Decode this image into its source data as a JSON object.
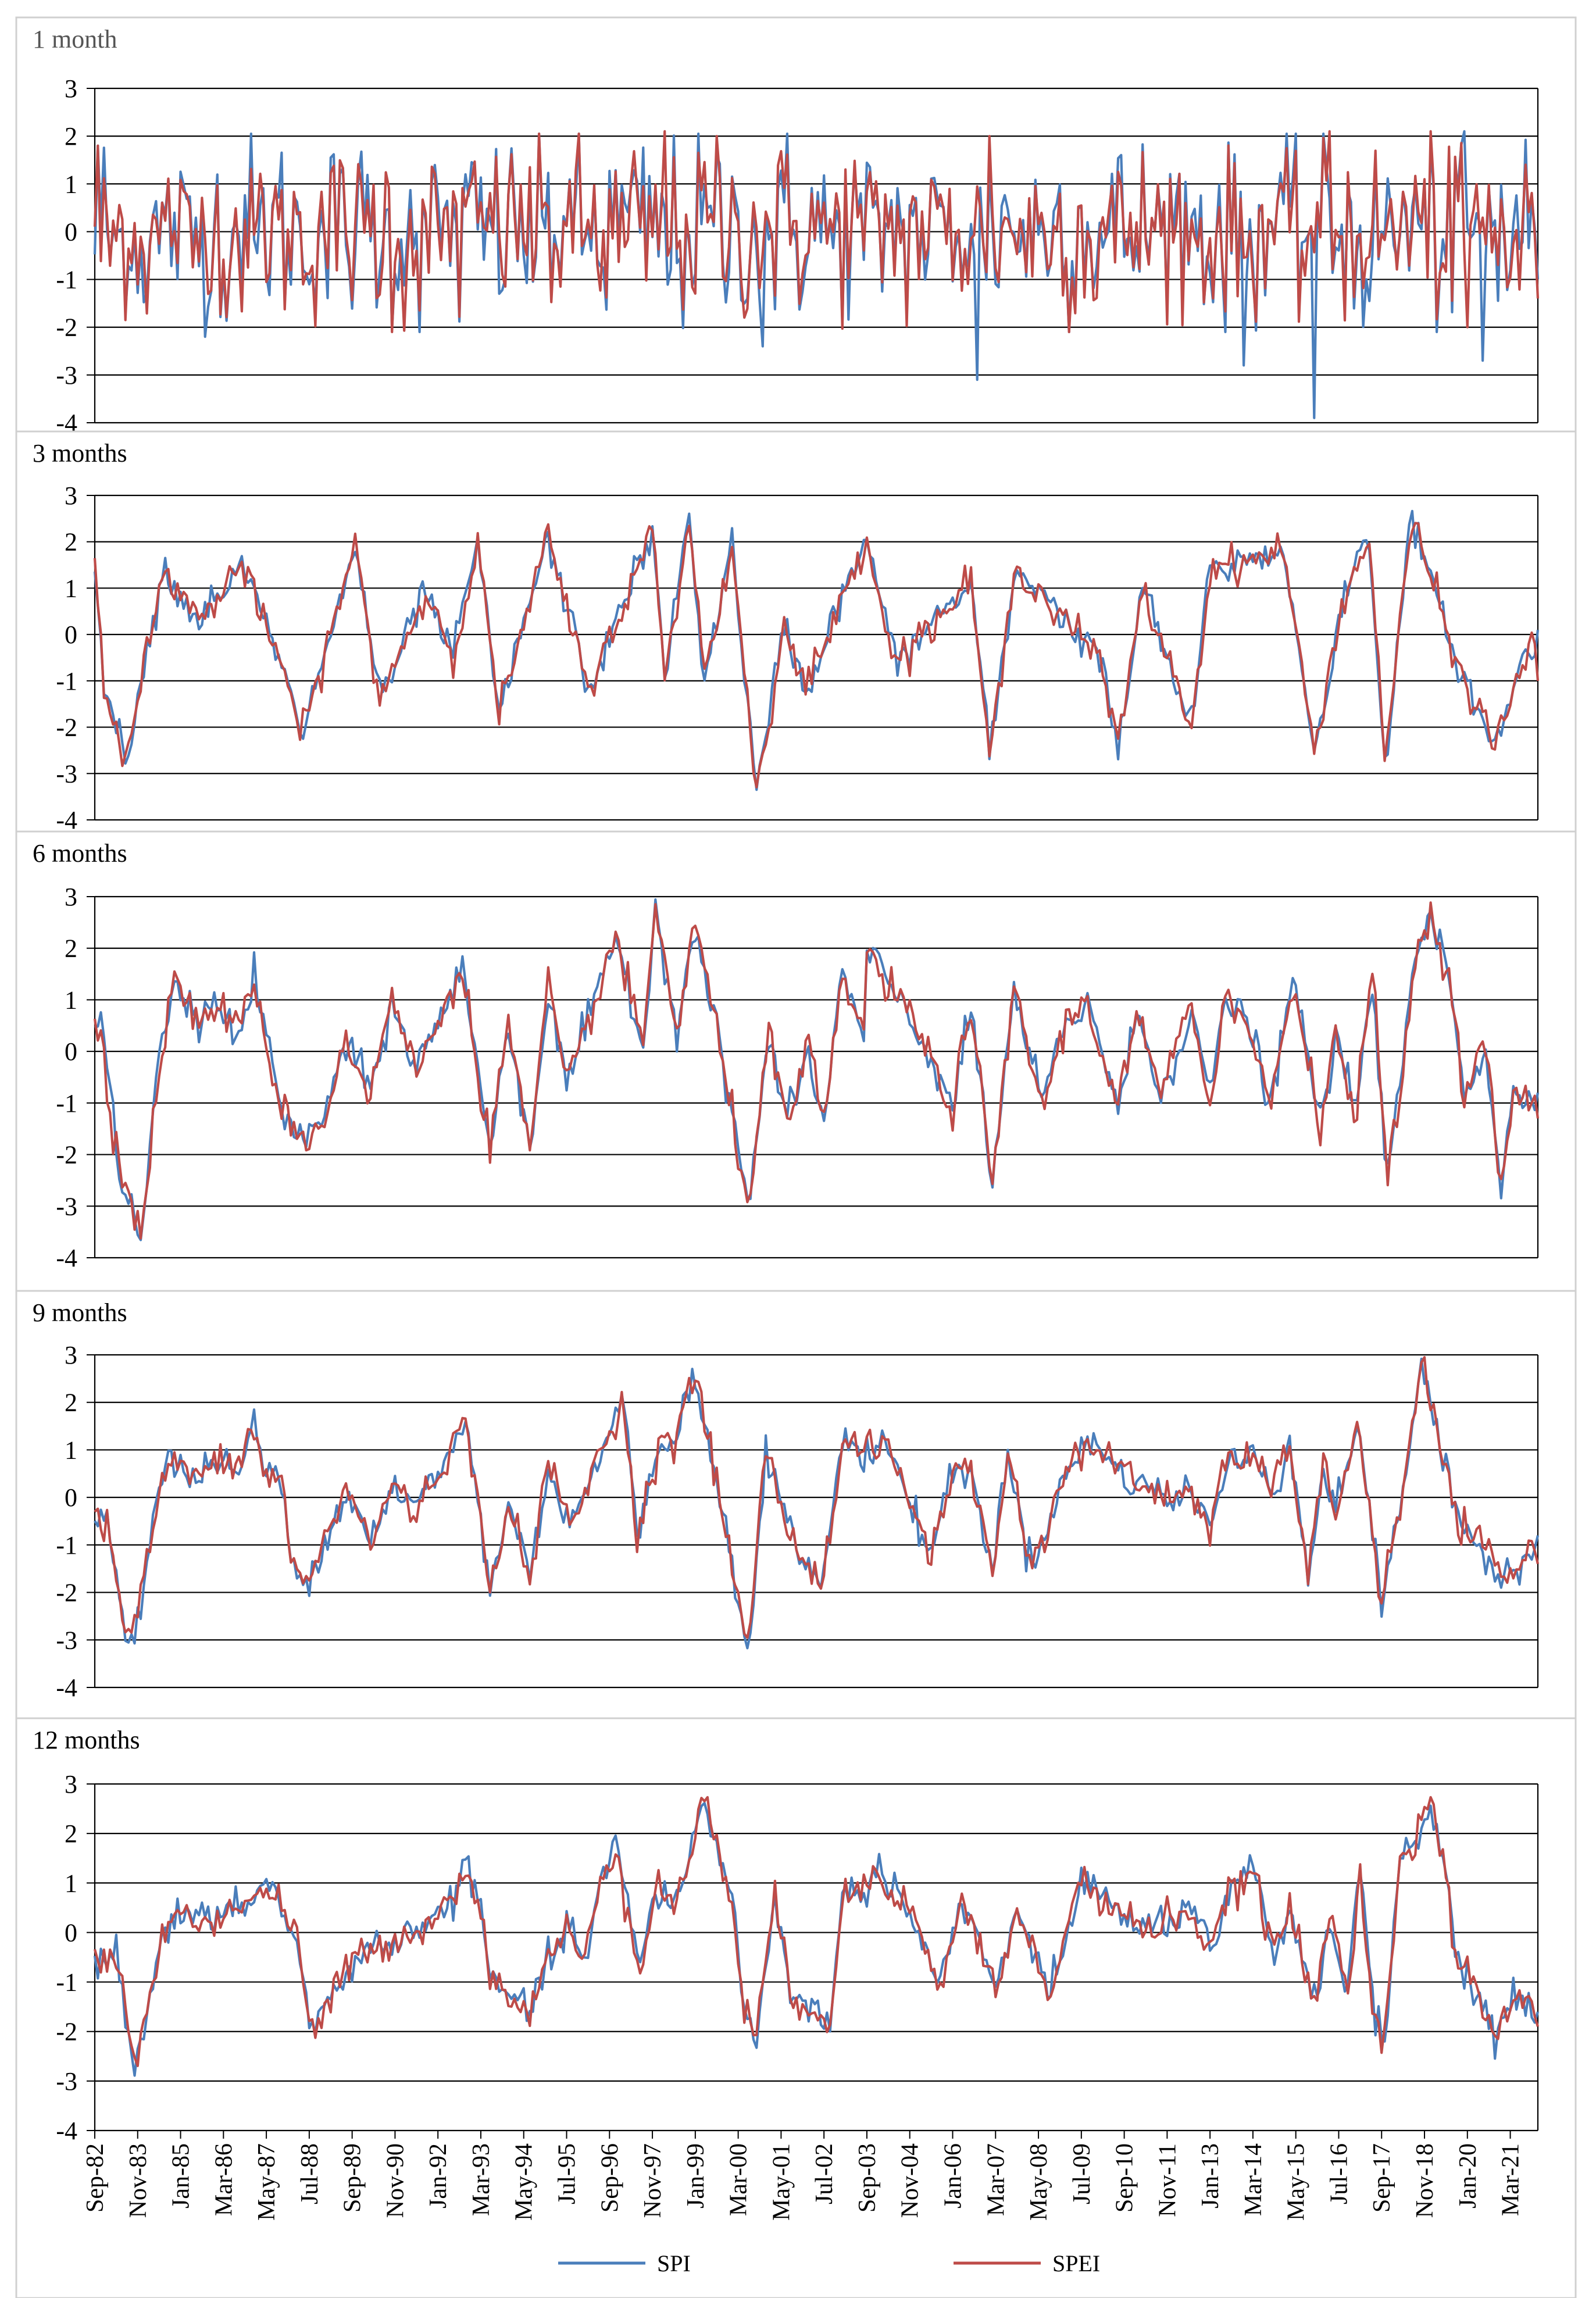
{
  "figure": {
    "legend": [
      {
        "name": "SPI",
        "color": "#4A7EBB"
      },
      {
        "name": "SPEI",
        "color": "#BE4B48"
      }
    ],
    "x_tick_labels": [
      "Sep-82",
      "Nov-83",
      "Jan-85",
      "Mar-86",
      "May-87",
      "Jul-88",
      "Sep-89",
      "Nov-90",
      "Jan-92",
      "Mar-93",
      "May-94",
      "Jul-95",
      "Sep-96",
      "Nov-97",
      "Jan-99",
      "Mar-00",
      "May-01",
      "Jul-02",
      "Sep-03",
      "Nov-04",
      "Jan-06",
      "Mar-07",
      "May-08",
      "Jul-09",
      "Sep-10",
      "Nov-11",
      "Jan-13",
      "Mar-14",
      "May-15",
      "Jul-16",
      "Sep-17",
      "Nov-18",
      "Jan-20",
      "Mar-21"
    ]
  },
  "chart_data": [
    {
      "type": "line",
      "title": "1 month",
      "ylim": [
        -4,
        3
      ],
      "y_ticks": [
        3,
        2,
        1,
        0,
        -1,
        -2,
        -3,
        -4
      ],
      "grid": true,
      "x_range": [
        "Sep-82",
        "Dec-21"
      ],
      "series": [
        {
          "name": "SPI",
          "color": "#4A7EBB",
          "volatility": 1.0,
          "spikes": [
            [
              "Oct-82",
              1.8
            ],
            [
              "Sep-85",
              -2.2
            ],
            [
              "Nov-00",
              -2.4
            ],
            [
              "Sep-06",
              -3.1
            ],
            [
              "Dec-13",
              -2.8
            ],
            [
              "Nov-15",
              -3.9
            ],
            [
              "Dec-19",
              2.1
            ],
            [
              "Jun-20",
              -2.7
            ],
            [
              "Oct-21",
              0.7
            ]
          ]
        },
        {
          "name": "SPEI",
          "color": "#BE4B48",
          "volatility": 0.95,
          "spikes": [
            [
              "Oct-82",
              1.8
            ],
            [
              "Mar-98",
              2.1
            ],
            [
              "Aug-99",
              2.0
            ],
            [
              "Jan-07",
              2.0
            ],
            [
              "Apr-16",
              2.1
            ],
            [
              "Jan-19",
              2.1
            ],
            [
              "Jan-20",
              -2.0
            ],
            [
              "Dec-21",
              -1.4
            ]
          ]
        }
      ]
    },
    {
      "type": "line",
      "title": "3 months",
      "ylim": [
        -4,
        3
      ],
      "y_ticks": [
        3,
        2,
        1,
        0,
        -1,
        -2,
        -3,
        -4
      ],
      "grid": true,
      "x_range": [
        "Sep-82",
        "Dec-21"
      ],
      "anchors": [
        [
          "Sep-82",
          1.8
        ],
        [
          "Dec-82",
          -1.2
        ],
        [
          "Apr-83",
          -2.0
        ],
        [
          "Jul-83",
          -2.7
        ],
        [
          "Nov-83",
          -1.2
        ],
        [
          "Apr-84",
          0.2
        ],
        [
          "Aug-84",
          1.4
        ],
        [
          "Jul-85",
          0.3
        ],
        [
          "Sep-86",
          1.5
        ],
        [
          "Jan-88",
          -1.2
        ],
        [
          "Apr-88",
          -2.3
        ],
        [
          "Oct-89",
          1.9
        ],
        [
          "Jun-90",
          -1.4
        ],
        [
          "Sep-91",
          0.9
        ],
        [
          "Jun-92",
          -0.4
        ],
        [
          "Feb-93",
          1.9
        ],
        [
          "Sep-93",
          -1.7
        ],
        [
          "Jan-95",
          2.1
        ],
        [
          "Feb-96",
          -1.2
        ],
        [
          "Nov-97",
          2.2
        ],
        [
          "Mar-98",
          -0.9
        ],
        [
          "Nov-98",
          2.5
        ],
        [
          "Apr-99",
          -0.9
        ],
        [
          "Jan-00",
          1.9
        ],
        [
          "Sep-00",
          -3.4
        ],
        [
          "Jun-01",
          0.2
        ],
        [
          "Jan-02",
          -1.2
        ],
        [
          "Sep-03",
          2.1
        ],
        [
          "Jun-04",
          -0.6
        ],
        [
          "Jul-06",
          1.1
        ],
        [
          "Jan-07",
          -2.6
        ],
        [
          "Oct-07",
          1.5
        ],
        [
          "Jan-10",
          -0.5
        ],
        [
          "Jul-10",
          -2.5
        ],
        [
          "Mar-11",
          1.0
        ],
        [
          "Jul-12",
          -2.0
        ],
        [
          "Jan-13",
          1.4
        ],
        [
          "Jan-15",
          1.8
        ],
        [
          "Nov-15",
          -2.5
        ],
        [
          "Sep-16",
          0.9
        ],
        [
          "May-17",
          2.1
        ],
        [
          "Oct-17",
          -2.7
        ],
        [
          "Jul-18",
          2.5
        ],
        [
          "Oct-19",
          -0.7
        ],
        [
          "Oct-20",
          -2.4
        ],
        [
          "Jun-21",
          -0.8
        ],
        [
          "Dec-21",
          0.1
        ]
      ],
      "series": [
        {
          "name": "SPI",
          "color": "#4A7EBB",
          "end_value": 0.1
        },
        {
          "name": "SPEI",
          "color": "#BE4B48",
          "end_value": -1.0
        }
      ]
    },
    {
      "type": "line",
      "title": "6 months",
      "ylim": [
        -4,
        3
      ],
      "y_ticks": [
        3,
        2,
        1,
        0,
        -1,
        -2,
        -3,
        -4
      ],
      "grid": true,
      "x_range": [
        "Sep-82",
        "Dec-21"
      ],
      "anchors": [
        [
          "Nov-82",
          0.5
        ],
        [
          "Mar-83",
          -1.4
        ],
        [
          "Jun-83",
          -2.5
        ],
        [
          "Dec-83",
          -3.6
        ],
        [
          "Jun-84",
          -0.3
        ],
        [
          "Nov-84",
          1.4
        ],
        [
          "Jul-85",
          0.5
        ],
        [
          "Jan-86",
          1.0
        ],
        [
          "Aug-86",
          0.3
        ],
        [
          "Jan-87",
          1.4
        ],
        [
          "Oct-87",
          -1.2
        ],
        [
          "Jun-88",
          -1.7
        ],
        [
          "Jan-89",
          -1.2
        ],
        [
          "Jun-89",
          0.2
        ],
        [
          "Mar-90",
          -0.8
        ],
        [
          "Oct-90",
          1.0
        ],
        [
          "Jun-91",
          -0.4
        ],
        [
          "Jan-92",
          0.6
        ],
        [
          "Sep-92",
          1.6
        ],
        [
          "Jun-93",
          -1.8
        ],
        [
          "Dec-93",
          0.5
        ],
        [
          "Jul-94",
          -1.9
        ],
        [
          "Jan-95",
          1.2
        ],
        [
          "Jul-95",
          -0.7
        ],
        [
          "Nov-96",
          2.2
        ],
        [
          "Aug-97",
          0.1
        ],
        [
          "Dec-97",
          2.8
        ],
        [
          "Jul-98",
          0.4
        ],
        [
          "Jan-99",
          2.5
        ],
        [
          "Jan-00",
          -1.2
        ],
        [
          "Jun-00",
          -3.0
        ],
        [
          "Jan-01",
          0.3
        ],
        [
          "Jul-01",
          -1.5
        ],
        [
          "Feb-02",
          0.1
        ],
        [
          "Jul-02",
          -1.5
        ],
        [
          "Jan-03",
          1.5
        ],
        [
          "Aug-03",
          0.3
        ],
        [
          "Sep-03",
          1.9
        ],
        [
          "Dec-04",
          0.6
        ],
        [
          "Jan-06",
          -1.1
        ],
        [
          "Jul-06",
          0.9
        ],
        [
          "Feb-07",
          -2.7
        ],
        [
          "Sep-07",
          1.3
        ],
        [
          "Jun-08",
          -1.1
        ],
        [
          "Jan-09",
          0.4
        ],
        [
          "Sep-09",
          1.0
        ],
        [
          "Jul-10",
          -1.1
        ],
        [
          "Jan-11",
          0.7
        ],
        [
          "Sep-11",
          -0.8
        ],
        [
          "Jul-12",
          0.8
        ],
        [
          "Jan-13",
          -1.0
        ],
        [
          "Jun-13",
          1.2
        ],
        [
          "Mar-14",
          0.2
        ],
        [
          "Sep-14",
          -1.0
        ],
        [
          "Apr-15",
          1.4
        ],
        [
          "Jan-16",
          -1.4
        ],
        [
          "Jun-16",
          0.4
        ],
        [
          "Dec-16",
          -1.3
        ],
        [
          "Jun-17",
          1.5
        ],
        [
          "Nov-17",
          -2.5
        ],
        [
          "Apr-18",
          -0.2
        ],
        [
          "Sep-18",
          2.1
        ],
        [
          "Jan-19",
          2.6
        ],
        [
          "Jun-19",
          1.8
        ],
        [
          "Dec-19",
          -0.8
        ],
        [
          "Jul-20",
          0.1
        ],
        [
          "Dec-20",
          -2.6
        ],
        [
          "Apr-21",
          -1.0
        ],
        [
          "Dec-21",
          -0.8
        ]
      ],
      "series": [
        {
          "name": "SPI",
          "color": "#4A7EBB",
          "end_value": -0.8
        },
        {
          "name": "SPEI",
          "color": "#BE4B48",
          "end_value": -1.3
        }
      ]
    },
    {
      "type": "line",
      "title": "9 months",
      "ylim": [
        -4,
        3
      ],
      "y_ticks": [
        3,
        2,
        1,
        0,
        -1,
        -2,
        -3,
        -4
      ],
      "grid": true,
      "x_range": [
        "Sep-82",
        "Dec-21"
      ],
      "anchors": [
        [
          "Jan-83",
          -0.5
        ],
        [
          "Apr-83",
          -1.5
        ],
        [
          "Jul-83",
          -3.1
        ],
        [
          "Dec-83",
          -2.2
        ],
        [
          "Apr-84",
          -0.5
        ],
        [
          "Sep-84",
          0.8
        ],
        [
          "Jul-85",
          0.4
        ],
        [
          "Jan-86",
          0.8
        ],
        [
          "Jul-86",
          0.5
        ],
        [
          "Jan-87",
          1.5
        ],
        [
          "Apr-87",
          0.6
        ],
        [
          "Oct-87",
          0.3
        ],
        [
          "Jan-88",
          -1.3
        ],
        [
          "Jun-88",
          -1.8
        ],
        [
          "Jan-89",
          -0.8
        ],
        [
          "Jul-89",
          0.2
        ],
        [
          "Mar-90",
          -0.9
        ],
        [
          "Nov-90",
          0.3
        ],
        [
          "May-91",
          -0.3
        ],
        [
          "Jan-92",
          0.5
        ],
        [
          "Oct-92",
          1.6
        ],
        [
          "Jun-93",
          -1.9
        ],
        [
          "Dec-93",
          -0.1
        ],
        [
          "Jul-94",
          -1.7
        ],
        [
          "Jan-95",
          0.7
        ],
        [
          "Aug-95",
          -0.6
        ],
        [
          "Oct-96",
          1.5
        ],
        [
          "Jan-97",
          2.2
        ],
        [
          "Jun-97",
          -0.8
        ],
        [
          "Feb-98",
          1.3
        ],
        [
          "Jun-98",
          1.1
        ],
        [
          "Dec-98",
          2.6
        ],
        [
          "Jun-99",
          1.0
        ],
        [
          "Dec-99",
          -1.0
        ],
        [
          "Jun-00",
          -3.2
        ],
        [
          "Dec-00",
          1.0
        ],
        [
          "Jun-01",
          -0.4
        ],
        [
          "Dec-01",
          -1.3
        ],
        [
          "Jun-02",
          -1.8
        ],
        [
          "Feb-03",
          1.3
        ],
        [
          "Oct-03",
          0.9
        ],
        [
          "Mar-04",
          1.2
        ],
        [
          "Jan-05",
          -0.4
        ],
        [
          "Jun-05",
          -1.2
        ],
        [
          "Jan-06",
          0.6
        ],
        [
          "Jul-06",
          0.5
        ],
        [
          "Feb-07",
          -1.5
        ],
        [
          "Jul-07",
          0.9
        ],
        [
          "Mar-08",
          -1.5
        ],
        [
          "Jan-09",
          0.4
        ],
        [
          "Sep-09",
          1.2
        ],
        [
          "Sep-10",
          0.5
        ],
        [
          "Jan-12",
          -0.1
        ],
        [
          "Jun-12",
          0.3
        ],
        [
          "Jan-13",
          -0.7
        ],
        [
          "Jul-13",
          0.9
        ],
        [
          "Nov-13",
          0.6
        ],
        [
          "Mar-14",
          0.9
        ],
        [
          "Oct-14",
          0.2
        ],
        [
          "Mar-15",
          1.2
        ],
        [
          "Sep-15",
          -1.7
        ],
        [
          "Feb-16",
          0.6
        ],
        [
          "Jun-16",
          -0.3
        ],
        [
          "Jan-17",
          1.6
        ],
        [
          "Sep-17",
          -2.2
        ],
        [
          "May-18",
          0.5
        ],
        [
          "Oct-18",
          2.9
        ],
        [
          "May-19",
          0.7
        ],
        [
          "Dec-19",
          -0.8
        ],
        [
          "Jun-20",
          -1.0
        ],
        [
          "Nov-20",
          -1.6
        ],
        [
          "Apr-21",
          -1.6
        ],
        [
          "Dec-21",
          -0.8
        ]
      ],
      "series": [
        {
          "name": "SPI",
          "color": "#4A7EBB",
          "end_value": -0.8
        },
        {
          "name": "SPEI",
          "color": "#BE4B48",
          "end_value": -1.4
        }
      ]
    },
    {
      "type": "line",
      "title": "12 months",
      "ylim": [
        -4,
        3
      ],
      "y_ticks": [
        3,
        2,
        1,
        0,
        -1,
        -2,
        -3,
        -4
      ],
      "grid": true,
      "x_range": [
        "Sep-82",
        "Dec-21"
      ],
      "anchors": [
        [
          "Apr-83",
          -0.5
        ],
        [
          "Jul-83",
          -1.5
        ],
        [
          "Oct-83",
          -2.8
        ],
        [
          "Jan-84",
          -1.8
        ],
        [
          "Jun-84",
          -0.3
        ],
        [
          "Dec-84",
          0.4
        ],
        [
          "Jul-85",
          0.3
        ],
        [
          "Jan-86",
          0.2
        ],
        [
          "Sep-86",
          0.6
        ],
        [
          "Apr-87",
          0.9
        ],
        [
          "Sep-87",
          0.7
        ],
        [
          "Mar-88",
          -0.2
        ],
        [
          "Aug-88",
          -2.1
        ],
        [
          "Apr-89",
          -1.1
        ],
        [
          "Oct-89",
          -0.5
        ],
        [
          "Jun-90",
          -0.3
        ],
        [
          "Jan-91",
          -0.1
        ],
        [
          "Sep-91",
          0.2
        ],
        [
          "May-92",
          0.6
        ],
        [
          "Nov-92",
          1.5
        ],
        [
          "Jun-93",
          -0.8
        ],
        [
          "Dec-93",
          -1.3
        ],
        [
          "Jul-94",
          -1.6
        ],
        [
          "Jan-95",
          -0.6
        ],
        [
          "Jul-95",
          0.1
        ],
        [
          "Jan-96",
          -0.6
        ],
        [
          "Jun-96",
          1.0
        ],
        [
          "Nov-96",
          1.8
        ],
        [
          "Jul-97",
          -0.8
        ],
        [
          "Dec-97",
          1.0
        ],
        [
          "Jun-98",
          0.5
        ],
        [
          "Dec-98",
          1.7
        ],
        [
          "Mar-99",
          2.8
        ],
        [
          "Sep-99",
          1.5
        ],
        [
          "Jan-00",
          0.7
        ],
        [
          "May-00",
          -1.6
        ],
        [
          "Sep-00",
          -2.0
        ],
        [
          "Mar-01",
          0.6
        ],
        [
          "Sep-01",
          -1.4
        ],
        [
          "Apr-02",
          -1.5
        ],
        [
          "Sep-02",
          -1.8
        ],
        [
          "Jan-03",
          0.7
        ],
        [
          "Jul-03",
          0.8
        ],
        [
          "Dec-03",
          1.3
        ],
        [
          "Sep-04",
          0.7
        ],
        [
          "Mar-05",
          -0.2
        ],
        [
          "Sep-05",
          -1.1
        ],
        [
          "Mar-06",
          0.5
        ],
        [
          "Jul-06",
          0.3
        ],
        [
          "Mar-07",
          -1.2
        ],
        [
          "Sep-07",
          0.3
        ],
        [
          "Apr-08",
          -0.4
        ],
        [
          "Sep-08",
          -1.4
        ],
        [
          "Mar-09",
          0.2
        ],
        [
          "Jul-09",
          1.2
        ],
        [
          "Jan-10",
          0.6
        ],
        [
          "Jul-10",
          0.5
        ],
        [
          "Apr-11",
          0.0
        ],
        [
          "Oct-11",
          0.3
        ],
        [
          "Jun-12",
          0.4
        ],
        [
          "Feb-13",
          -0.4
        ],
        [
          "Aug-13",
          0.9
        ],
        [
          "Mar-14",
          1.2
        ],
        [
          "Oct-14",
          -0.4
        ],
        [
          "Mar-15",
          0.5
        ],
        [
          "Nov-15",
          -1.5
        ],
        [
          "Apr-16",
          0.3
        ],
        [
          "Oct-16",
          -1.1
        ],
        [
          "Feb-17",
          1.3
        ],
        [
          "Jun-17",
          -1.5
        ],
        [
          "Oct-17",
          -2.1
        ],
        [
          "Mar-18",
          1.5
        ],
        [
          "Aug-18",
          1.8
        ],
        [
          "Jan-19",
          2.6
        ],
        [
          "Jun-19",
          1.2
        ],
        [
          "Sep-19",
          -0.5
        ],
        [
          "Mar-20",
          -1.1
        ],
        [
          "Oct-20",
          -2.2
        ],
        [
          "Mar-21",
          -1.3
        ],
        [
          "Dec-21",
          -1.6
        ]
      ],
      "series": [
        {
          "name": "SPI",
          "color": "#4A7EBB",
          "end_value": -1.6
        },
        {
          "name": "SPEI",
          "color": "#BE4B48",
          "end_value": -1.9
        }
      ]
    }
  ]
}
